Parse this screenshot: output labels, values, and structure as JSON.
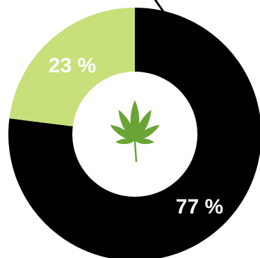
{
  "chart_data": {
    "type": "pie",
    "variant": "donut",
    "categories": [
      "",
      ""
    ],
    "values": [
      77,
      23
    ],
    "labels": [
      "77 %",
      "23 %"
    ],
    "colors": [
      "#000000",
      "#c8e07a"
    ],
    "center_icon": "cannabis-leaf-icon",
    "center_icon_color": "#6aa436",
    "background": "#ffffff"
  }
}
